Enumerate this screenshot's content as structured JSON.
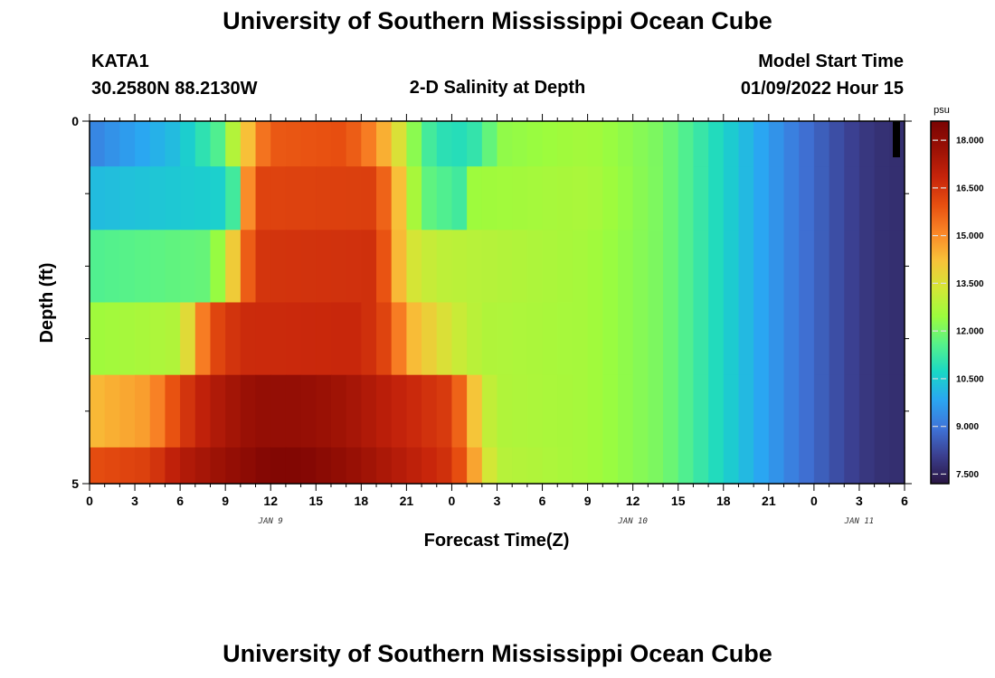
{
  "page": {
    "title_top": "University of Southern Mississippi Ocean Cube",
    "title_bottom": "University of Southern Mississippi Ocean Cube",
    "station_id": "KATA1",
    "station_coords": "30.2580N  88.2130W",
    "plot_title": "2-D Salinity at Depth",
    "model_start_label": "Model Start Time",
    "model_start_value": "01/09/2022 Hour 15"
  },
  "chart_data": {
    "type": "heatmap",
    "title": "2-D Salinity at Depth",
    "xlabel": "Forecast Time(Z)",
    "ylabel": "Depth (ft)",
    "x_tick_labels": [
      "0",
      "3",
      "6",
      "9",
      "12",
      "15",
      "18",
      "21",
      "0",
      "3",
      "6",
      "9",
      "12",
      "15",
      "18",
      "21",
      "0",
      "3",
      "6"
    ],
    "x_day_labels": [
      {
        "label": "JAN 9",
        "hour_offset": 12
      },
      {
        "label": "JAN 10",
        "hour_offset": 36
      },
      {
        "label": "JAN 11",
        "hour_offset": 51
      }
    ],
    "x_range_hours": [
      0,
      54
    ],
    "y_tick_labels": [
      "0",
      "5"
    ],
    "y_range": [
      0,
      5
    ],
    "depth_layers": [
      {
        "depth_ft": 0.25,
        "keys": [
          [
            0,
            9.2
          ],
          [
            6,
            10.3
          ],
          [
            8.5,
            11.5
          ],
          [
            10,
            13.5
          ],
          [
            11,
            15.0
          ],
          [
            12,
            15.8
          ],
          [
            17,
            16.0
          ],
          [
            19,
            15.0
          ],
          [
            21,
            13.0
          ],
          [
            22,
            11.5
          ],
          [
            24,
            10.8
          ],
          [
            26,
            11.2
          ],
          [
            27,
            12.3
          ],
          [
            33,
            12.6
          ],
          [
            38,
            12.0
          ],
          [
            41,
            11.0
          ],
          [
            44,
            10.0
          ],
          [
            47,
            9.0
          ],
          [
            50,
            8.2
          ],
          [
            52,
            7.8
          ],
          [
            54,
            7.7
          ]
        ]
      },
      {
        "depth_ft": 1.0,
        "keys": [
          [
            0,
            10.2
          ],
          [
            9,
            10.6
          ],
          [
            10,
            12.0
          ],
          [
            10.5,
            15.0
          ],
          [
            11,
            16.2
          ],
          [
            19,
            16.3
          ],
          [
            20,
            15.0
          ],
          [
            21,
            13.5
          ],
          [
            22,
            11.8
          ],
          [
            24.5,
            11.3
          ],
          [
            25.5,
            12.5
          ],
          [
            33,
            12.7
          ],
          [
            38,
            12.0
          ],
          [
            41,
            11.0
          ],
          [
            44,
            10.0
          ],
          [
            47,
            9.0
          ],
          [
            50,
            8.2
          ],
          [
            52,
            7.8
          ],
          [
            54,
            7.7
          ]
        ]
      },
      {
        "depth_ft": 2.0,
        "keys": [
          [
            0,
            11.5
          ],
          [
            8,
            11.8
          ],
          [
            9,
            13.0
          ],
          [
            10,
            15.0
          ],
          [
            11,
            16.5
          ],
          [
            19,
            16.6
          ],
          [
            20,
            15.2
          ],
          [
            21,
            13.5
          ],
          [
            23,
            13.0
          ],
          [
            28,
            12.8
          ],
          [
            33,
            12.6
          ],
          [
            38,
            12.0
          ],
          [
            41,
            11.0
          ],
          [
            44,
            10.0
          ],
          [
            47,
            9.0
          ],
          [
            50,
            8.2
          ],
          [
            52,
            7.8
          ],
          [
            54,
            7.7
          ]
        ]
      },
      {
        "depth_ft": 3.0,
        "keys": [
          [
            0,
            12.5
          ],
          [
            6,
            12.8
          ],
          [
            7,
            14.5
          ],
          [
            8,
            16.0
          ],
          [
            10,
            16.7
          ],
          [
            18,
            16.8
          ],
          [
            20,
            16.0
          ],
          [
            21,
            14.5
          ],
          [
            24,
            13.3
          ],
          [
            26,
            12.8
          ],
          [
            33,
            12.6
          ],
          [
            38,
            12.0
          ],
          [
            41,
            11.0
          ],
          [
            44,
            10.0
          ],
          [
            47,
            9.0
          ],
          [
            50,
            8.2
          ],
          [
            52,
            7.8
          ],
          [
            54,
            7.7
          ]
        ]
      },
      {
        "depth_ft": 4.0,
        "keys": [
          [
            0,
            14.3
          ],
          [
            4,
            14.8
          ],
          [
            6,
            16.3
          ],
          [
            8,
            17.2
          ],
          [
            11,
            17.9
          ],
          [
            14,
            17.9
          ],
          [
            17,
            17.6
          ],
          [
            20,
            17.0
          ],
          [
            24,
            16.3
          ],
          [
            25,
            15.0
          ],
          [
            26,
            13.3
          ],
          [
            27,
            12.8
          ],
          [
            33,
            12.6
          ],
          [
            38,
            12.0
          ],
          [
            41,
            11.0
          ],
          [
            44,
            10.0
          ],
          [
            47,
            9.0
          ],
          [
            50,
            8.2
          ],
          [
            52,
            7.8
          ],
          [
            54,
            7.7
          ]
        ]
      },
      {
        "depth_ft": 5.0,
        "keys": [
          [
            0,
            16.0
          ],
          [
            4,
            16.3
          ],
          [
            6,
            17.2
          ],
          [
            9,
            17.8
          ],
          [
            12,
            18.4
          ],
          [
            14,
            18.4
          ],
          [
            17,
            17.9
          ],
          [
            20,
            17.3
          ],
          [
            24,
            16.5
          ],
          [
            25,
            15.5
          ],
          [
            26,
            13.8
          ],
          [
            27,
            12.9
          ],
          [
            33,
            12.6
          ],
          [
            38,
            12.0
          ],
          [
            41,
            11.0
          ],
          [
            44,
            10.0
          ],
          [
            47,
            9.0
          ],
          [
            50,
            8.2
          ],
          [
            52,
            7.8
          ],
          [
            54,
            7.7
          ]
        ]
      }
    ],
    "colorbar": {
      "unit": "psu",
      "min": 7.2,
      "max": 18.6,
      "tick_values": [
        7.5,
        9.0,
        10.5,
        12.0,
        13.5,
        15.0,
        16.5,
        18.0
      ],
      "tick_labels": [
        "7.500",
        "9.000",
        "10.500",
        "12.000",
        "13.500",
        "15.000",
        "16.500",
        "18.000"
      ],
      "colors": [
        "#2a1642",
        "#3b3f8f",
        "#3f74d9",
        "#2aa6f2",
        "#19d7c6",
        "#56f28a",
        "#9cfc3d",
        "#d3e736",
        "#f8c239",
        "#fa8627",
        "#e74f10",
        "#c6240b",
        "#9b1105",
        "#7a0403"
      ]
    },
    "grid": false
  }
}
